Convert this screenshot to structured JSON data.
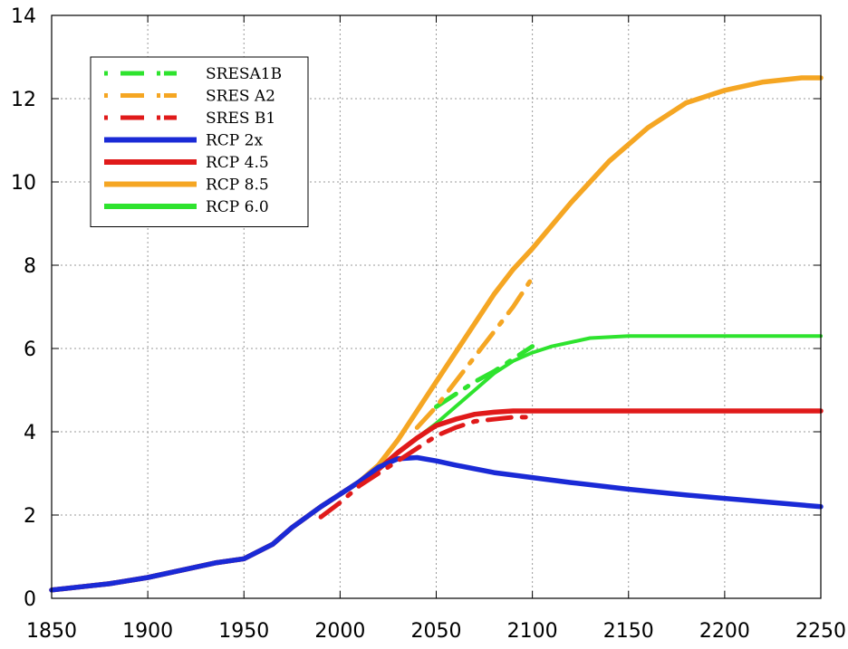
{
  "chart_data": {
    "type": "line",
    "xlim": [
      1850,
      2250
    ],
    "ylim": [
      0,
      14
    ],
    "x_ticks": [
      1850,
      1900,
      1950,
      2000,
      2050,
      2100,
      2150,
      2200,
      2250
    ],
    "y_ticks": [
      0,
      2,
      4,
      6,
      8,
      10,
      12,
      14
    ],
    "grid": true,
    "legend_position": "top-left",
    "series": [
      {
        "name": "RCP 8.5",
        "color": "#f5a623",
        "style": "solid",
        "x": [
          1850,
          1870,
          1880,
          1900,
          1920,
          1935,
          1950,
          1965,
          1975,
          1990,
          2000,
          2010,
          2020,
          2030,
          2040,
          2050,
          2060,
          2070,
          2080,
          2090,
          2100,
          2120,
          2140,
          2160,
          2180,
          2200,
          2220,
          2240,
          2250
        ],
        "y": [
          0.2,
          0.3,
          0.35,
          0.5,
          0.7,
          0.85,
          0.95,
          1.3,
          1.7,
          2.2,
          2.5,
          2.8,
          3.2,
          3.8,
          4.5,
          5.2,
          5.9,
          6.6,
          7.3,
          7.9,
          8.4,
          9.5,
          10.5,
          11.3,
          11.9,
          12.2,
          12.4,
          12.5,
          12.5
        ]
      },
      {
        "name": "RCP 6.0",
        "color": "#2ee32e",
        "style": "solid",
        "x": [
          1850,
          1870,
          1880,
          1900,
          1920,
          1935,
          1950,
          1965,
          1975,
          1990,
          2000,
          2010,
          2020,
          2030,
          2040,
          2050,
          2060,
          2070,
          2080,
          2090,
          2100,
          2110,
          2130,
          2150,
          2200,
          2250
        ],
        "y": [
          0.2,
          0.3,
          0.35,
          0.5,
          0.7,
          0.85,
          0.95,
          1.3,
          1.7,
          2.2,
          2.5,
          2.8,
          3.1,
          3.5,
          3.85,
          4.2,
          4.6,
          5.0,
          5.4,
          5.7,
          5.9,
          6.05,
          6.25,
          6.3,
          6.3,
          6.3
        ]
      },
      {
        "name": "RCP 4.5",
        "color": "#e01a1a",
        "style": "solid",
        "x": [
          1850,
          1870,
          1880,
          1900,
          1920,
          1935,
          1950,
          1965,
          1975,
          1990,
          2000,
          2010,
          2020,
          2030,
          2040,
          2050,
          2060,
          2070,
          2080,
          2090,
          2100,
          2110,
          2150,
          2200,
          2250
        ],
        "y": [
          0.2,
          0.3,
          0.35,
          0.5,
          0.7,
          0.85,
          0.95,
          1.3,
          1.7,
          2.2,
          2.5,
          2.8,
          3.1,
          3.5,
          3.85,
          4.15,
          4.3,
          4.42,
          4.47,
          4.5,
          4.5,
          4.5,
          4.5,
          4.5,
          4.5
        ]
      },
      {
        "name": "RCP 2x",
        "color": "#1a2ad6",
        "style": "solid",
        "x": [
          1850,
          1870,
          1880,
          1900,
          1920,
          1935,
          1950,
          1965,
          1975,
          1990,
          2000,
          2010,
          2020,
          2030,
          2040,
          2050,
          2060,
          2080,
          2100,
          2120,
          2150,
          2180,
          2200,
          2220,
          2250
        ],
        "y": [
          0.2,
          0.3,
          0.35,
          0.5,
          0.7,
          0.85,
          0.95,
          1.3,
          1.7,
          2.2,
          2.5,
          2.8,
          3.15,
          3.35,
          3.38,
          3.3,
          3.2,
          3.02,
          2.9,
          2.78,
          2.62,
          2.48,
          2.4,
          2.32,
          2.2
        ]
      },
      {
        "name": "SRESA1B",
        "color": "#2ee32e",
        "style": "dashdot",
        "x": [
          2050,
          2060,
          2070,
          2080,
          2090,
          2100
        ],
        "y": [
          4.6,
          4.9,
          5.2,
          5.45,
          5.75,
          6.05
        ]
      },
      {
        "name": "SRES A2",
        "color": "#f5a623",
        "style": "dashdot",
        "x": [
          2040,
          2050,
          2060,
          2070,
          2080,
          2090,
          2100
        ],
        "y": [
          4.1,
          4.6,
          5.2,
          5.8,
          6.4,
          7.0,
          7.7
        ]
      },
      {
        "name": "SRES B1",
        "color": "#e01a1a",
        "style": "dashdot",
        "x": [
          1990,
          2000,
          2010,
          2020,
          2030,
          2040,
          2050,
          2060,
          2070,
          2080,
          2090,
          2100
        ],
        "y": [
          1.95,
          2.3,
          2.7,
          3.0,
          3.3,
          3.6,
          3.9,
          4.1,
          4.25,
          4.3,
          4.35,
          4.35
        ]
      }
    ],
    "legend": [
      {
        "label": "SRESA1B",
        "color": "#2ee32e",
        "style": "dashdot"
      },
      {
        "label": "SRES A2",
        "color": "#f5a623",
        "style": "dashdot"
      },
      {
        "label": "SRES B1",
        "color": "#e01a1a",
        "style": "dashdot"
      },
      {
        "label": "RCP 2x",
        "color": "#1a2ad6",
        "style": "solid"
      },
      {
        "label": "RCP 4.5",
        "color": "#e01a1a",
        "style": "solid"
      },
      {
        "label": "RCP 8.5",
        "color": "#f5a623",
        "style": "solid"
      },
      {
        "label": "RCP 6.0",
        "color": "#2ee32e",
        "style": "solid"
      }
    ]
  }
}
